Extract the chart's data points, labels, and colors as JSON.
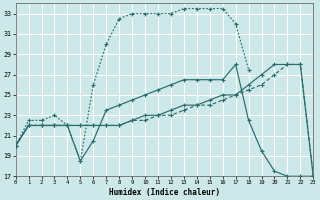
{
  "xlabel": "Humidex (Indice chaleur)",
  "bg_color": "#cde8e8",
  "grid_color": "#b8d8d8",
  "line_color": "#2a6b6b",
  "xlim": [
    0,
    23
  ],
  "ylim": [
    17,
    34
  ],
  "yticks": [
    17,
    19,
    21,
    23,
    25,
    27,
    29,
    31,
    33
  ],
  "xticks": [
    0,
    1,
    2,
    3,
    4,
    5,
    6,
    7,
    8,
    9,
    10,
    11,
    12,
    13,
    14,
    15,
    16,
    17,
    18,
    19,
    20,
    21,
    22,
    23
  ],
  "line1_x": [
    0,
    1,
    2,
    3,
    4,
    5,
    6,
    7,
    8,
    9,
    10,
    11,
    12,
    13,
    14,
    15,
    16,
    17,
    18
  ],
  "line1_y": [
    20,
    22.5,
    22.5,
    23,
    22,
    18.5,
    26,
    30,
    32.5,
    33,
    33,
    33,
    33,
    33.5,
    33.5,
    33.5,
    33.5,
    32,
    27.5
  ],
  "line2_x": [
    0,
    1,
    2,
    3,
    4,
    5,
    6,
    7,
    8,
    9,
    10,
    11,
    12,
    13,
    14,
    15,
    16,
    17,
    18,
    19,
    20,
    21,
    22,
    23
  ],
  "line2_y": [
    20,
    22,
    22,
    22,
    22,
    18.5,
    20.5,
    23.5,
    24,
    24.5,
    25,
    25.5,
    26,
    26.5,
    26.5,
    26.5,
    26.5,
    28,
    22.5,
    19.5,
    17.5,
    17,
    17,
    17
  ],
  "line3_x": [
    0,
    1,
    2,
    3,
    4,
    5,
    6,
    7,
    8,
    9,
    10,
    11,
    12,
    13,
    14,
    15,
    16,
    17,
    18,
    19,
    20,
    21,
    22,
    23
  ],
  "line3_y": [
    20,
    22,
    22,
    22,
    22,
    22,
    22,
    22,
    22,
    22.5,
    23,
    23,
    23.5,
    24,
    24,
    24.5,
    25,
    25,
    26,
    27,
    28,
    28,
    28,
    17
  ],
  "line4_x": [
    0,
    1,
    2,
    3,
    4,
    5,
    6,
    7,
    8,
    9,
    10,
    11,
    12,
    13,
    14,
    15,
    16,
    17,
    18,
    19,
    20,
    21,
    22,
    23
  ],
  "line4_y": [
    20,
    22,
    22,
    22,
    22,
    22,
    22,
    22,
    22,
    22.5,
    22.5,
    23,
    23,
    23.5,
    24,
    24,
    24.5,
    25,
    25.5,
    26,
    27,
    28,
    28,
    17
  ]
}
